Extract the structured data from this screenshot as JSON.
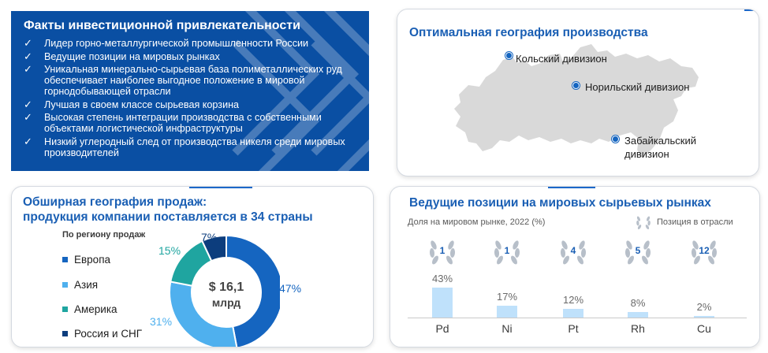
{
  "facts": {
    "title": "Факты инвестиционной привлекательности",
    "items": [
      "Лидер горно-металлургической промышленности России",
      "Ведущие позиции на мировых рынках",
      "Уникальная минерально-сырьевая база полиметаллических руд обеспечивает наиболее выгодное положение в мировой горнодобывающей отрасли",
      "Лучшая в своем классе сырьевая корзина",
      "Высокая степень интеграции производства с собственными объектами логистической инфраструктуры",
      "Низкий углеродный след от производства никеля среди мировых производителей"
    ]
  },
  "geography": {
    "title": "Оптимальная география производства",
    "divisions": [
      {
        "line1": "Кольский дивизион",
        "line2": ""
      },
      {
        "line1": "Норильский дивизион",
        "line2": ""
      },
      {
        "line1": "Забайкальский",
        "line2": "дивизион"
      }
    ]
  },
  "sales": {
    "title_line1": "Обширная география продаж:",
    "title_line2": "продукция компании поставляется в 34 страны",
    "region_header": "По региону продаж",
    "center_line1": "$ 16,1",
    "center_line2": "млрд",
    "regions": [
      {
        "name": "Европа",
        "value": 47,
        "label": "47%",
        "color": "#1565c0"
      },
      {
        "name": "Азия",
        "value": 31,
        "label": "31%",
        "color": "#4fb0ee"
      },
      {
        "name": "Америка",
        "value": 15,
        "label": "15%",
        "color": "#1fa5a0"
      },
      {
        "name": "Россия и СНГ",
        "value": 7,
        "label": "7%",
        "color": "#0c3d7d"
      }
    ]
  },
  "markets": {
    "title": "Ведущие позиции на мировых сырьевых рынках",
    "subtitle_left": "Доля на мировом рынке, 2022 (%)",
    "subtitle_right": "Позиция в отрасли",
    "metals": [
      {
        "name": "Pd",
        "share": 43,
        "share_label": "43%",
        "rank": "1"
      },
      {
        "name": "Ni",
        "share": 17,
        "share_label": "17%",
        "rank": "1"
      },
      {
        "name": "Pt",
        "share": 12,
        "share_label": "12%",
        "rank": "4"
      },
      {
        "name": "Rh",
        "share": 8,
        "share_label": "8%",
        "rank": "5"
      },
      {
        "name": "Cu",
        "share": 2,
        "share_label": "2%",
        "rank": "12"
      }
    ]
  },
  "colors": {
    "brand_blue": "#0a4fa3",
    "title_blue": "#1a5fb4",
    "bar_fill": "#bfe1fb",
    "map_gray": "#d9d9d9"
  },
  "icons": {
    "check": "check-icon",
    "laurel": "laurel-wreath-icon",
    "map": "russia-map-icon",
    "location": "location-dot-icon"
  }
}
